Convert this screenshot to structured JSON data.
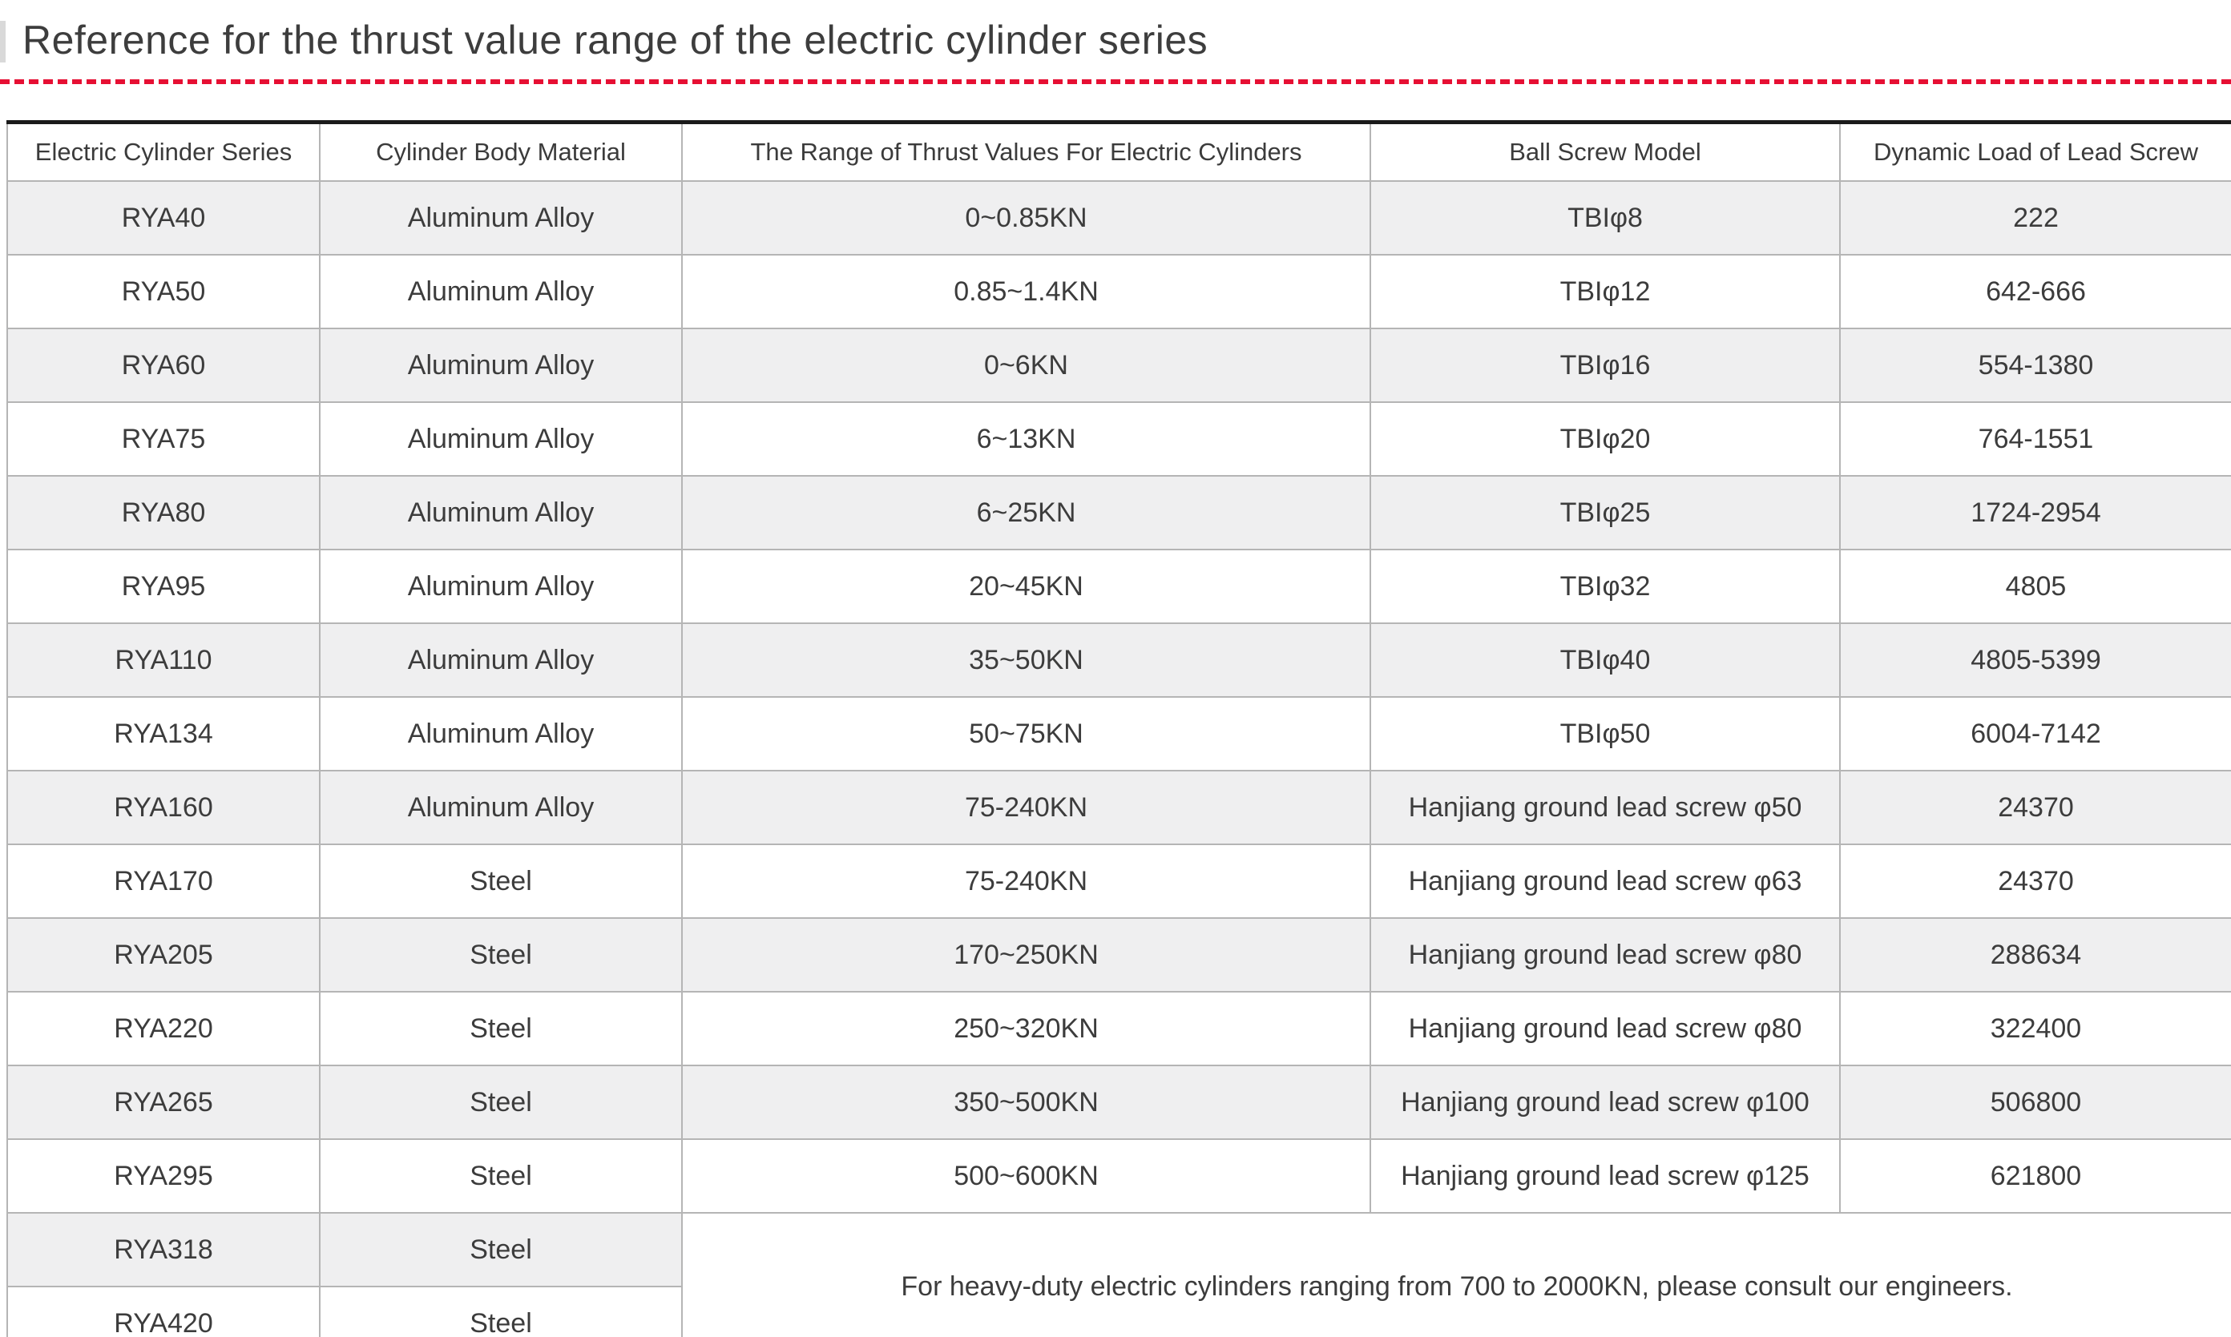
{
  "title": "Reference for the thrust value range of the electric cylinder series",
  "colors": {
    "accent_red": "#e60f33",
    "row_stripe": "#efeff0",
    "grid_border": "#b5b5b5",
    "table_top_border": "#1b1b1b",
    "text": "#3c3c3c"
  },
  "table": {
    "headers": [
      "Electric Cylinder Series",
      "Cylinder Body Material",
      "The Range of Thrust Values For Electric Cylinders",
      "Ball Screw Model",
      "Dynamic Load of Lead Screw"
    ],
    "rows": [
      {
        "series": "RYA40",
        "material": "Aluminum Alloy",
        "thrust": "0~0.85KN",
        "screw": "TBIφ8",
        "load": "222"
      },
      {
        "series": "RYA50",
        "material": "Aluminum Alloy",
        "thrust": "0.85~1.4KN",
        "screw": "TBIφ12",
        "load": "642-666"
      },
      {
        "series": "RYA60",
        "material": "Aluminum Alloy",
        "thrust": "0~6KN",
        "screw": "TBIφ16",
        "load": "554-1380"
      },
      {
        "series": "RYA75",
        "material": "Aluminum Alloy",
        "thrust": "6~13KN",
        "screw": "TBIφ20",
        "load": "764-1551"
      },
      {
        "series": "RYA80",
        "material": "Aluminum Alloy",
        "thrust": "6~25KN",
        "screw": "TBIφ25",
        "load": "1724-2954"
      },
      {
        "series": "RYA95",
        "material": "Aluminum Alloy",
        "thrust": "20~45KN",
        "screw": "TBIφ32",
        "load": "4805"
      },
      {
        "series": "RYA110",
        "material": "Aluminum Alloy",
        "thrust": "35~50KN",
        "screw": "TBIφ40",
        "load": "4805-5399"
      },
      {
        "series": "RYA134",
        "material": "Aluminum Alloy",
        "thrust": "50~75KN",
        "screw": "TBIφ50",
        "load": "6004-7142"
      },
      {
        "series": "RYA160",
        "material": "Aluminum Alloy",
        "thrust": "75-240KN",
        "screw": "Hanjiang ground lead screw φ50",
        "load": "24370"
      },
      {
        "series": "RYA170",
        "material": "Steel",
        "thrust": "75-240KN",
        "screw": "Hanjiang ground lead screw φ63",
        "load": "24370"
      },
      {
        "series": "RYA205",
        "material": "Steel",
        "thrust": "170~250KN",
        "screw": "Hanjiang ground lead screw φ80",
        "load": "288634"
      },
      {
        "series": "RYA220",
        "material": "Steel",
        "thrust": "250~320KN",
        "screw": "Hanjiang ground lead screw φ80",
        "load": "322400"
      },
      {
        "series": "RYA265",
        "material": "Steel",
        "thrust": "350~500KN",
        "screw": "Hanjiang ground lead screw φ100",
        "load": "506800"
      },
      {
        "series": "RYA295",
        "material": "Steel",
        "thrust": "500~600KN",
        "screw": "Hanjiang ground lead screw φ125",
        "load": "621800"
      },
      {
        "series": "RYA318",
        "material": "Steel",
        "note_anchor": true
      },
      {
        "series": "RYA420",
        "material": "Steel"
      }
    ],
    "note": "For heavy-duty electric cylinders ranging from 700 to 2000KN, please consult our engineers."
  }
}
